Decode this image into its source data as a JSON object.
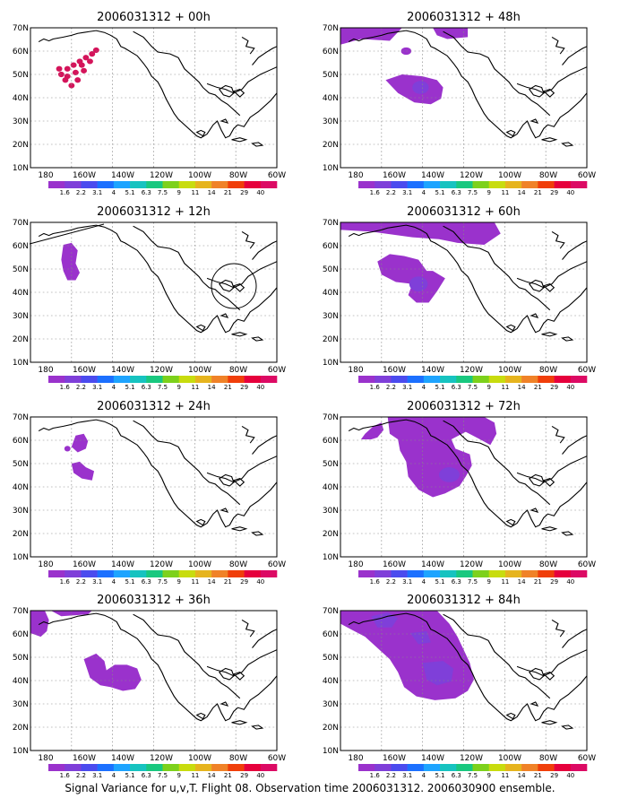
{
  "caption": "Signal Variance for u,v,T. Flight 08. Observation time 2006031312. 2006030900 ensemble.",
  "x_ticks": [
    "180",
    "160W",
    "140W",
    "120W",
    "100W",
    "80W",
    "60W"
  ],
  "y_ticks": [
    "10N",
    "20N",
    "30N",
    "40N",
    "50N",
    "60N",
    "70N"
  ],
  "colorbar": {
    "labels": [
      "1.6",
      "2.2",
      "3.1",
      "4",
      "5.1",
      "6.3",
      "7.5",
      "9",
      "11",
      "14",
      "21",
      "29",
      "40"
    ],
    "colors": [
      "#9a32cc",
      "#7f3fd9",
      "#4b4bee",
      "#1c70ff",
      "#1ea4ff",
      "#16c3c0",
      "#19c87f",
      "#7dd11c",
      "#c8dc0e",
      "#e6b41e",
      "#f08228",
      "#f03e0a",
      "#e6003c",
      "#dc0a64"
    ]
  },
  "panels": [
    {
      "title": "2006031312 + 00h"
    },
    {
      "title": "2006031312 + 48h"
    },
    {
      "title": "2006031312 + 12h"
    },
    {
      "title": "2006031312 + 60h"
    },
    {
      "title": "2006031312 + 24h"
    },
    {
      "title": "2006031312 + 72h"
    },
    {
      "title": "2006031312 + 36h"
    },
    {
      "title": "2006031312 + 84h"
    }
  ]
}
